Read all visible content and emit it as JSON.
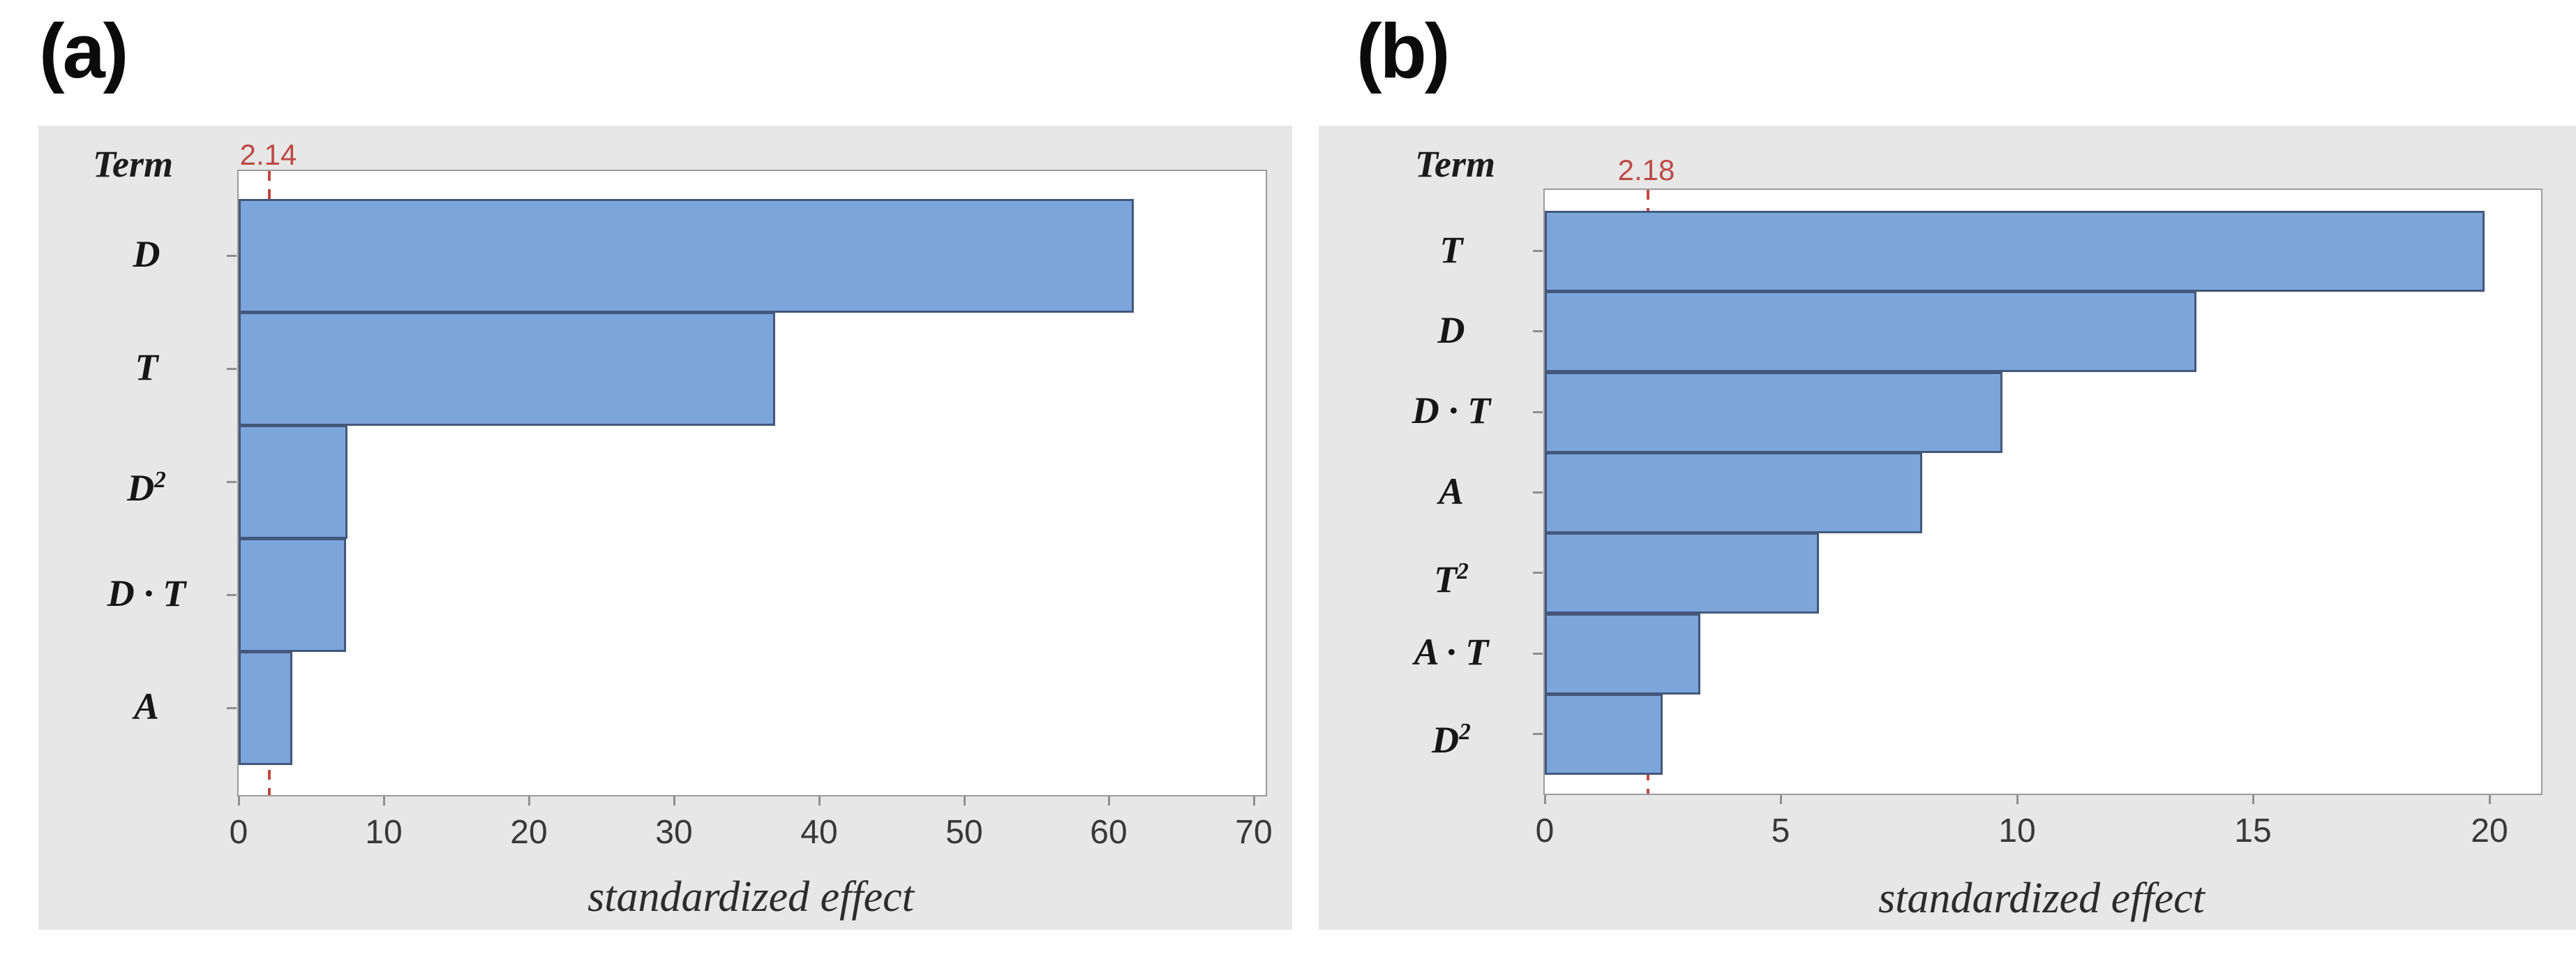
{
  "colors": {
    "page_background": "#FFFFFF",
    "panel_background": "#E7E7E7",
    "plot_background": "#FFFFFF",
    "plot_frame": "#9B9B9B",
    "bar_fill": "#7CA5DC",
    "bar_border": "#44587B",
    "reference_line_red": "#C2473F",
    "tick_mark": "#8F8F8F",
    "tick_label_text": "#383838",
    "label_text": "#161616"
  },
  "chart_data": [
    {
      "type": "bar",
      "orientation": "horizontal",
      "panel": "(a)",
      "ylabel": "Term",
      "xlabel": "standardized effect",
      "categories": [
        "D",
        "T",
        "D²",
        "D · T",
        "A"
      ],
      "values": [
        61.7,
        37.0,
        7.5,
        7.4,
        3.7
      ],
      "xticks": [
        0,
        10,
        20,
        30,
        40,
        50,
        60,
        70
      ],
      "xlim": [
        0,
        70.8
      ],
      "reference_line": 2.14,
      "reference_label": "2.14",
      "grid": false,
      "legend": false
    },
    {
      "type": "bar",
      "orientation": "horizontal",
      "panel": "(b)",
      "ylabel": "Term",
      "xlabel": "standardized effect",
      "categories": [
        "T",
        "D",
        "D · T",
        "A",
        "T²",
        "A · T",
        "D²"
      ],
      "values": [
        19.9,
        13.8,
        9.7,
        8.0,
        5.8,
        3.3,
        2.5
      ],
      "xticks": [
        0,
        5,
        10,
        15,
        20
      ],
      "xlim": [
        0,
        21.1
      ],
      "reference_line": 2.18,
      "reference_label": "2.18",
      "grid": false,
      "legend": false
    }
  ]
}
